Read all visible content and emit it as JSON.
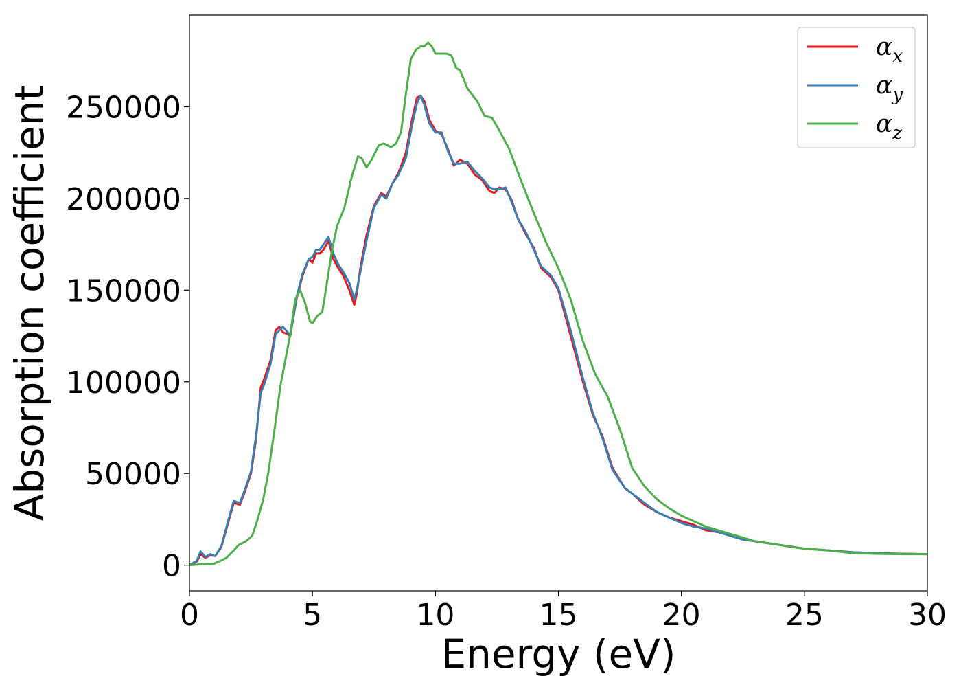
{
  "chart_data": {
    "type": "line",
    "title": "",
    "xlabel": "Energy (eV)",
    "ylabel": "Absorption coefficient",
    "xlim": [
      0,
      30
    ],
    "ylim": [
      -14000,
      300000
    ],
    "xticks": [
      0,
      5,
      10,
      15,
      20,
      25,
      30
    ],
    "yticks": [
      0,
      50000,
      100000,
      150000,
      200000,
      250000
    ],
    "grid": false,
    "legend_position": "top-right",
    "series": [
      {
        "name": "α_x",
        "symbol": "α",
        "subscript": "x",
        "color": "#e41a1c",
        "x": [
          0,
          0.3,
          0.45,
          0.65,
          0.85,
          1.05,
          1.3,
          1.55,
          1.8,
          2.05,
          2.25,
          2.5,
          2.7,
          2.9,
          3.05,
          3.3,
          3.5,
          3.65,
          3.8,
          4.0,
          4.1,
          4.35,
          4.6,
          4.85,
          5.0,
          5.15,
          5.3,
          5.45,
          5.65,
          5.85,
          6.05,
          6.25,
          6.5,
          6.7,
          6.8,
          6.95,
          7.2,
          7.5,
          7.8,
          8.0,
          8.25,
          8.5,
          8.8,
          9.05,
          9.25,
          9.4,
          9.55,
          9.75,
          10.0,
          10.25,
          10.5,
          10.75,
          11.0,
          11.3,
          11.6,
          11.9,
          12.2,
          12.4,
          12.6,
          12.85,
          13.1,
          13.35,
          13.7,
          14.0,
          14.3,
          14.7,
          15.0,
          15.5,
          16.0,
          16.4,
          16.8,
          17.2,
          17.7,
          18.0,
          18.5,
          19.0,
          19.5,
          20.0,
          20.5,
          21.0,
          21.5,
          22.0,
          22.5,
          23.0,
          23.5,
          24.0,
          25.0,
          26.0,
          27.0,
          28.0,
          29.0,
          30.0
        ],
        "values": [
          0,
          2000,
          6000,
          4000,
          5500,
          5000,
          10000,
          22000,
          34000,
          33000,
          40000,
          50000,
          68000,
          97000,
          102000,
          112000,
          128000,
          130000,
          127000,
          126000,
          125000,
          145000,
          158000,
          167000,
          165000,
          170000,
          170000,
          172000,
          177000,
          167000,
          162000,
          158000,
          150000,
          142000,
          148000,
          162000,
          180000,
          196000,
          203000,
          201000,
          208000,
          214000,
          225000,
          243000,
          255000,
          256000,
          253000,
          243000,
          237000,
          235000,
          227000,
          218000,
          221000,
          219000,
          213000,
          210000,
          204000,
          203000,
          206000,
          205000,
          199000,
          189000,
          180000,
          173000,
          162000,
          157000,
          150000,
          125000,
          100000,
          82000,
          70000,
          53000,
          42000,
          39000,
          33000,
          29000,
          26000,
          24000,
          22000,
          19000,
          18000,
          16000,
          14000,
          13000,
          12000,
          11000,
          9000,
          8000,
          7000,
          6500,
          6200,
          6000
        ]
      },
      {
        "name": "α_y",
        "symbol": "α",
        "subscript": "y",
        "color": "#377eb8",
        "x": [
          0,
          0.3,
          0.45,
          0.65,
          0.85,
          1.05,
          1.3,
          1.55,
          1.8,
          2.05,
          2.25,
          2.5,
          2.7,
          2.9,
          3.05,
          3.3,
          3.5,
          3.65,
          3.8,
          4.0,
          4.1,
          4.35,
          4.6,
          4.85,
          5.0,
          5.15,
          5.3,
          5.45,
          5.65,
          5.85,
          6.05,
          6.25,
          6.5,
          6.7,
          6.8,
          6.95,
          7.2,
          7.5,
          7.8,
          8.0,
          8.25,
          8.5,
          8.8,
          9.05,
          9.25,
          9.4,
          9.55,
          9.75,
          10.0,
          10.25,
          10.5,
          10.75,
          11.0,
          11.3,
          11.6,
          11.9,
          12.2,
          12.4,
          12.6,
          12.85,
          13.1,
          13.35,
          13.7,
          14.0,
          14.3,
          14.7,
          15.0,
          15.5,
          16.0,
          16.4,
          16.8,
          17.2,
          17.7,
          18.0,
          18.5,
          19.0,
          19.5,
          20.0,
          20.5,
          21.0,
          21.5,
          22.0,
          22.5,
          23.0,
          23.5,
          24.0,
          25.0,
          26.0,
          27.0,
          28.0,
          29.0,
          30.0
        ],
        "values": [
          0,
          2500,
          7500,
          4500,
          6000,
          5000,
          10500,
          23000,
          35000,
          34000,
          41000,
          51000,
          70000,
          94000,
          99000,
          110000,
          126000,
          128000,
          130000,
          127000,
          125000,
          146000,
          159000,
          167000,
          168000,
          172000,
          172000,
          175000,
          179000,
          170000,
          164000,
          160000,
          154000,
          145000,
          150000,
          160000,
          177000,
          195000,
          202000,
          200000,
          208000,
          213000,
          222000,
          240000,
          252000,
          256000,
          251000,
          241000,
          236000,
          236000,
          226000,
          219000,
          219000,
          220000,
          215000,
          211000,
          206000,
          205000,
          205000,
          206000,
          198000,
          189000,
          181000,
          172000,
          163000,
          158000,
          151000,
          128000,
          102000,
          83000,
          69000,
          52000,
          42000,
          39000,
          34000,
          29000,
          26000,
          23000,
          21000,
          20000,
          18000,
          16000,
          14000,
          13000,
          12000,
          11000,
          9000,
          8000,
          7000,
          6500,
          6200,
          6000
        ]
      },
      {
        "name": "α_z",
        "symbol": "α",
        "subscript": "z",
        "color": "#4daf4a",
        "x": [
          0,
          0.5,
          1.0,
          1.2,
          1.5,
          1.8,
          2.0,
          2.3,
          2.55,
          2.75,
          3.0,
          3.2,
          3.45,
          3.7,
          3.9,
          4.1,
          4.3,
          4.5,
          4.7,
          4.9,
          5.0,
          5.2,
          5.4,
          5.6,
          5.8,
          6.0,
          6.3,
          6.6,
          6.85,
          7.0,
          7.2,
          7.4,
          7.7,
          7.9,
          8.2,
          8.4,
          8.6,
          8.8,
          9.0,
          9.2,
          9.4,
          9.55,
          9.7,
          9.85,
          10.0,
          10.2,
          10.45,
          10.65,
          10.85,
          11.0,
          11.3,
          11.7,
          12.0,
          12.3,
          12.6,
          13.0,
          13.5,
          14.0,
          14.5,
          15.0,
          15.5,
          16.0,
          16.5,
          17.0,
          17.5,
          18.0,
          18.5,
          19.0,
          19.5,
          20.0,
          20.5,
          21.0,
          21.5,
          22.0,
          23.0,
          24.0,
          25.0,
          26.0,
          27.0,
          28.0,
          29.0,
          30.0
        ],
        "values": [
          0,
          500,
          800,
          2000,
          4000,
          8000,
          11000,
          13000,
          16000,
          24000,
          36000,
          50000,
          73000,
          98000,
          112000,
          126000,
          145000,
          150000,
          143000,
          133000,
          132000,
          136000,
          138000,
          155000,
          172000,
          185000,
          195000,
          212000,
          223000,
          222000,
          217000,
          221000,
          229000,
          230000,
          228000,
          230000,
          236000,
          257000,
          276000,
          281000,
          283000,
          283000,
          285000,
          283000,
          279000,
          279000,
          279000,
          278000,
          271000,
          270000,
          260000,
          253000,
          245000,
          244000,
          237000,
          227000,
          209000,
          192000,
          176000,
          162000,
          145000,
          122000,
          104000,
          92000,
          74000,
          53000,
          43000,
          36000,
          31000,
          27000,
          24000,
          21000,
          19000,
          17000,
          13000,
          11000,
          9000,
          8000,
          6500,
          6200,
          6000,
          6000
        ]
      }
    ]
  }
}
